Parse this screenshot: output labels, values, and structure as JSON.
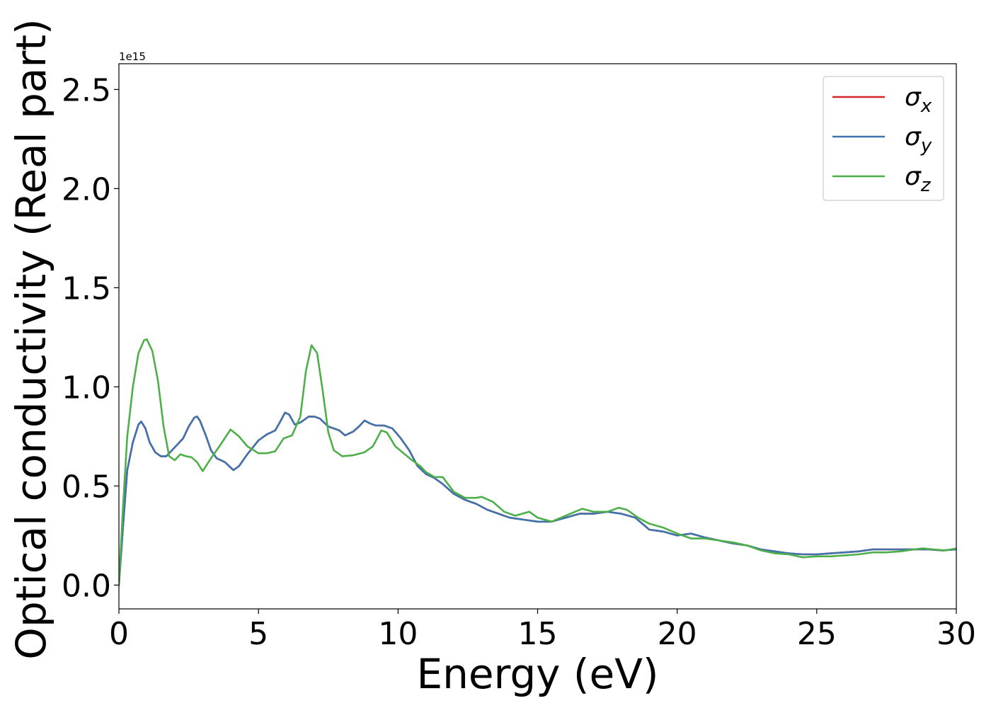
{
  "chart_data": {
    "type": "line",
    "xlabel": "Energy (eV)",
    "ylabel": "Optical conductivity (Real part)",
    "offset_text": "1e15",
    "xlim": [
      0,
      30
    ],
    "ylim": [
      -0.12,
      2.63
    ],
    "y_scale_factor": 1000000000000000.0,
    "xticks": [
      0,
      5,
      10,
      15,
      20,
      25,
      30
    ],
    "xtick_labels": [
      "0",
      "5",
      "10",
      "15",
      "20",
      "25",
      "30"
    ],
    "yticks": [
      0.0,
      0.5,
      1.0,
      1.5,
      2.0,
      2.5
    ],
    "ytick_labels": [
      "0.0",
      "0.5",
      "1.0",
      "1.5",
      "2.0",
      "2.5"
    ],
    "grid": false,
    "legend_position": "upper right",
    "series": [
      {
        "name": "σx",
        "symbol": "σ",
        "subscript": "x",
        "color": "#d62728",
        "x": [
          0,
          0.15,
          0.3,
          0.5,
          0.7,
          0.8,
          0.95,
          1.1,
          1.3,
          1.5,
          1.7,
          1.9,
          2.1,
          2.3,
          2.5,
          2.7,
          2.8,
          2.9,
          3.1,
          3.3,
          3.5,
          3.8,
          4.1,
          4.3,
          4.6,
          5.0,
          5.3,
          5.6,
          5.8,
          5.95,
          6.1,
          6.3,
          6.5,
          6.8,
          7.0,
          7.2,
          7.5,
          7.9,
          8.1,
          8.4,
          8.6,
          8.8,
          9.0,
          9.2,
          9.5,
          9.8,
          10.1,
          10.4,
          10.7,
          11.0,
          11.3,
          11.6,
          12.0,
          12.4,
          12.8,
          13.2,
          13.6,
          14.0,
          14.5,
          15.0,
          15.5,
          16.0,
          16.5,
          17.0,
          17.5,
          18.0,
          18.5,
          19.0,
          19.5,
          20.0,
          20.5,
          21.0,
          21.5,
          22.0,
          22.5,
          23.0,
          23.5,
          24.0,
          24.5,
          25.0,
          25.5,
          26.0,
          26.5,
          27.0,
          27.5,
          28.0,
          28.5,
          29.0,
          29.5,
          30.0
        ],
        "y": [
          0.0,
          0.3,
          0.58,
          0.72,
          0.81,
          0.825,
          0.79,
          0.72,
          0.67,
          0.65,
          0.65,
          0.68,
          0.71,
          0.74,
          0.8,
          0.845,
          0.85,
          0.83,
          0.76,
          0.68,
          0.64,
          0.62,
          0.58,
          0.6,
          0.66,
          0.73,
          0.76,
          0.78,
          0.83,
          0.87,
          0.86,
          0.81,
          0.82,
          0.85,
          0.85,
          0.84,
          0.8,
          0.78,
          0.755,
          0.775,
          0.8,
          0.83,
          0.815,
          0.805,
          0.805,
          0.79,
          0.74,
          0.68,
          0.6,
          0.56,
          0.54,
          0.51,
          0.46,
          0.43,
          0.41,
          0.38,
          0.36,
          0.34,
          0.33,
          0.32,
          0.32,
          0.34,
          0.36,
          0.36,
          0.37,
          0.36,
          0.34,
          0.28,
          0.27,
          0.25,
          0.26,
          0.24,
          0.225,
          0.21,
          0.2,
          0.18,
          0.17,
          0.16,
          0.155,
          0.155,
          0.16,
          0.165,
          0.17,
          0.18,
          0.18,
          0.18,
          0.18,
          0.18,
          0.175,
          0.18
        ]
      },
      {
        "name": "σy",
        "symbol": "σ",
        "subscript": "y",
        "color": "#3f73ad",
        "x": [
          0,
          0.15,
          0.3,
          0.5,
          0.7,
          0.8,
          0.95,
          1.1,
          1.3,
          1.5,
          1.7,
          1.9,
          2.1,
          2.3,
          2.5,
          2.7,
          2.8,
          2.9,
          3.1,
          3.3,
          3.5,
          3.8,
          4.1,
          4.3,
          4.6,
          5.0,
          5.3,
          5.6,
          5.8,
          5.95,
          6.1,
          6.3,
          6.5,
          6.8,
          7.0,
          7.2,
          7.5,
          7.9,
          8.1,
          8.4,
          8.6,
          8.8,
          9.0,
          9.2,
          9.5,
          9.8,
          10.1,
          10.4,
          10.7,
          11.0,
          11.3,
          11.6,
          12.0,
          12.4,
          12.8,
          13.2,
          13.6,
          14.0,
          14.5,
          15.0,
          15.5,
          16.0,
          16.5,
          17.0,
          17.5,
          18.0,
          18.5,
          19.0,
          19.5,
          20.0,
          20.5,
          21.0,
          21.5,
          22.0,
          22.5,
          23.0,
          23.5,
          24.0,
          24.5,
          25.0,
          25.5,
          26.0,
          26.5,
          27.0,
          27.5,
          28.0,
          28.5,
          29.0,
          29.5,
          30.0
        ],
        "y": [
          0.0,
          0.3,
          0.58,
          0.72,
          0.81,
          0.825,
          0.79,
          0.72,
          0.67,
          0.65,
          0.65,
          0.68,
          0.71,
          0.74,
          0.8,
          0.845,
          0.85,
          0.83,
          0.76,
          0.68,
          0.64,
          0.62,
          0.58,
          0.6,
          0.66,
          0.73,
          0.76,
          0.78,
          0.83,
          0.87,
          0.86,
          0.81,
          0.82,
          0.85,
          0.85,
          0.84,
          0.8,
          0.78,
          0.755,
          0.775,
          0.8,
          0.83,
          0.815,
          0.805,
          0.805,
          0.79,
          0.74,
          0.68,
          0.6,
          0.56,
          0.54,
          0.51,
          0.46,
          0.43,
          0.41,
          0.38,
          0.36,
          0.34,
          0.33,
          0.32,
          0.32,
          0.34,
          0.36,
          0.36,
          0.37,
          0.36,
          0.34,
          0.28,
          0.27,
          0.25,
          0.26,
          0.24,
          0.225,
          0.21,
          0.2,
          0.18,
          0.17,
          0.16,
          0.155,
          0.155,
          0.16,
          0.165,
          0.17,
          0.18,
          0.18,
          0.18,
          0.18,
          0.18,
          0.175,
          0.18
        ]
      },
      {
        "name": "σz",
        "symbol": "σ",
        "subscript": "z",
        "color": "#4daf4a",
        "x": [
          0,
          0.15,
          0.3,
          0.5,
          0.7,
          0.9,
          1.0,
          1.2,
          1.4,
          1.6,
          1.8,
          2.0,
          2.2,
          2.4,
          2.6,
          2.8,
          3.0,
          3.3,
          3.6,
          4.0,
          4.3,
          4.6,
          5.0,
          5.3,
          5.6,
          5.9,
          6.2,
          6.5,
          6.7,
          6.9,
          7.1,
          7.3,
          7.5,
          7.7,
          8.0,
          8.4,
          8.8,
          9.1,
          9.4,
          9.6,
          9.9,
          10.2,
          10.5,
          10.8,
          11.0,
          11.3,
          11.6,
          12.0,
          12.4,
          12.8,
          13.0,
          13.4,
          13.8,
          14.2,
          14.7,
          15.0,
          15.5,
          16.0,
          16.6,
          17.0,
          17.5,
          17.9,
          18.2,
          18.6,
          19.0,
          19.5,
          20.0,
          20.5,
          21.0,
          21.5,
          22.0,
          22.5,
          23.0,
          23.5,
          24.0,
          24.5,
          25.0,
          25.5,
          26.0,
          26.5,
          27.0,
          27.5,
          28.0,
          28.5,
          28.8,
          29.2,
          29.6,
          30.0
        ],
        "y": [
          0.0,
          0.4,
          0.75,
          1.0,
          1.17,
          1.235,
          1.24,
          1.18,
          1.03,
          0.8,
          0.65,
          0.63,
          0.66,
          0.65,
          0.645,
          0.62,
          0.575,
          0.64,
          0.7,
          0.785,
          0.75,
          0.7,
          0.665,
          0.665,
          0.675,
          0.74,
          0.755,
          0.85,
          1.08,
          1.21,
          1.17,
          0.98,
          0.77,
          0.68,
          0.65,
          0.655,
          0.67,
          0.7,
          0.78,
          0.77,
          0.7,
          0.665,
          0.63,
          0.6,
          0.57,
          0.545,
          0.545,
          0.47,
          0.44,
          0.44,
          0.445,
          0.42,
          0.37,
          0.35,
          0.37,
          0.34,
          0.32,
          0.35,
          0.385,
          0.37,
          0.37,
          0.39,
          0.38,
          0.34,
          0.31,
          0.29,
          0.26,
          0.235,
          0.235,
          0.225,
          0.215,
          0.2,
          0.175,
          0.16,
          0.155,
          0.14,
          0.145,
          0.145,
          0.15,
          0.155,
          0.165,
          0.165,
          0.17,
          0.18,
          0.185,
          0.18,
          0.175,
          0.185
        ]
      }
    ]
  }
}
